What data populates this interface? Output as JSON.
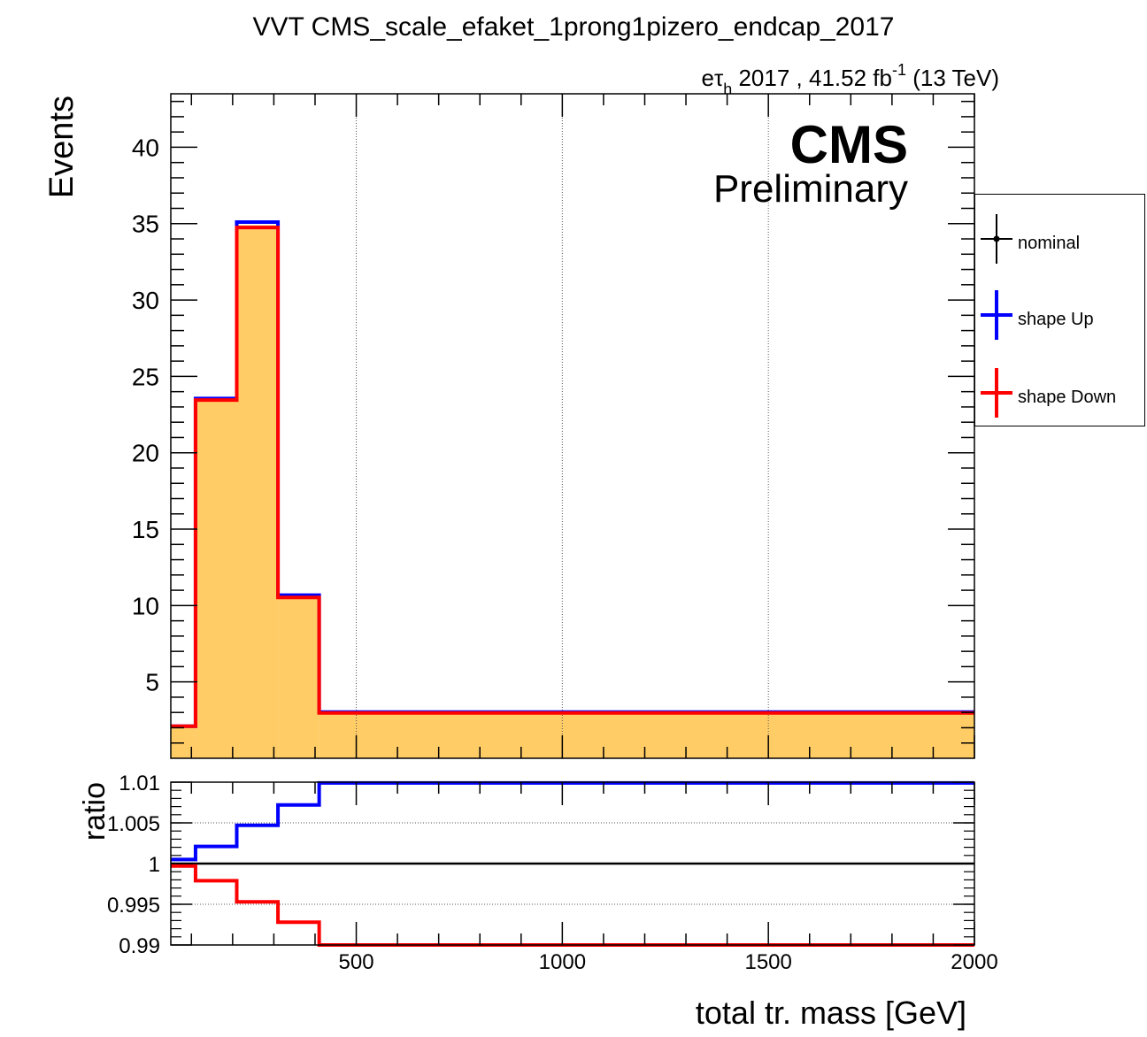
{
  "chart_data": {
    "type": "histogram",
    "title": "VVT CMS_scale_efaket_1prong1pizero_endcap_2017",
    "lumi": {
      "prefix": "eτ",
      "sub": "h",
      "text": " 2017 , 41.52 fb",
      "sup": "-1",
      "suffix": " (13 TeV)"
    },
    "cms_label": "CMS",
    "cms_sublabel": "Preliminary",
    "xlabel": "total tr. mass [GeV]",
    "ylabel": "Events",
    "ratio_ylabel": "ratio",
    "xlim": [
      50,
      2000
    ],
    "ylim": [
      0,
      43.5
    ],
    "ratio_ylim": [
      0.99,
      1.01
    ],
    "bin_edges": [
      50,
      110,
      210,
      310,
      410,
      2000
    ],
    "x_ticks": [
      "500",
      "1000",
      "1500",
      "2000"
    ],
    "x_tick_values": [
      500,
      1000,
      1500,
      2000
    ],
    "y_ticks": [
      "5",
      "10",
      "15",
      "20",
      "25",
      "30",
      "35",
      "40"
    ],
    "y_tick_values": [
      5,
      10,
      15,
      20,
      25,
      30,
      35,
      40
    ],
    "ratio_ticks": [
      "0.99",
      "0.995",
      "1",
      "1.005",
      "1.01"
    ],
    "ratio_tick_values": [
      0.99,
      0.995,
      1.0,
      1.005,
      1.01
    ],
    "series": [
      {
        "name": "nominal",
        "color": "#000000",
        "fill": "#ffcc66",
        "values": [
          2.1,
          23.5,
          34.9,
          10.6,
          3.0
        ]
      },
      {
        "name": "shape Up",
        "color": "#0000ff",
        "values": [
          2.1,
          23.55,
          35.1,
          10.68,
          3.03
        ]
      },
      {
        "name": "shape Down",
        "color": "#ff0000",
        "values": [
          2.1,
          23.45,
          34.75,
          10.53,
          2.97
        ]
      }
    ],
    "ratio_series": [
      {
        "name": "shape Up",
        "color": "#0000ff",
        "values": [
          1.0005,
          1.0021,
          1.0047,
          1.0072,
          1.0099
        ]
      },
      {
        "name": "shape Down",
        "color": "#ff0000",
        "values": [
          0.9997,
          0.9979,
          0.9953,
          0.9928,
          0.99
        ]
      }
    ],
    "grid": true,
    "legend_position": "right"
  }
}
